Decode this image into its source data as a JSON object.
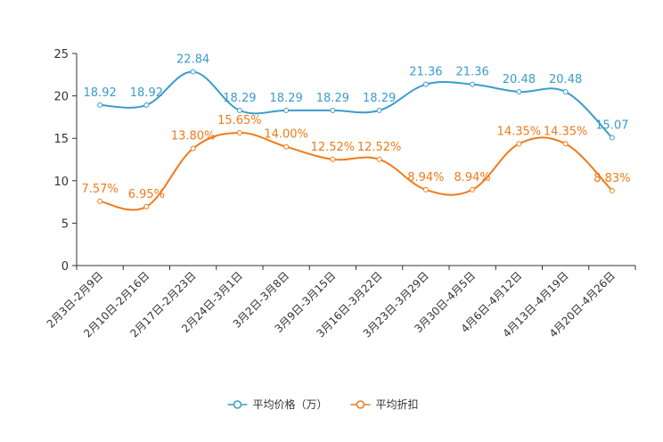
{
  "chart_data": {
    "type": "line",
    "categories": [
      "2月3日-2月9日",
      "2月10日-2月16日",
      "2月17日-2月23日",
      "2月24日-3月1日",
      "3月2日-3月8日",
      "3月9日-3月15日",
      "3月16日-3月22日",
      "3月23日-3月29日",
      "3月30日-4月5日",
      "4月6日-4月12日",
      "4月13日-4月19日",
      "4月20日-4月26日"
    ],
    "series": [
      {
        "name": "平均价格（万）",
        "color": "#3a9ccd",
        "values": [
          18.92,
          18.92,
          22.84,
          18.29,
          18.29,
          18.29,
          18.29,
          21.36,
          21.36,
          20.48,
          20.48,
          15.07
        ],
        "labels": [
          "18.92",
          "18.92",
          "22.84",
          "18.29",
          "18.29",
          "18.29",
          "18.29",
          "21.36",
          "21.36",
          "20.48",
          "20.48",
          "15.07"
        ]
      },
      {
        "name": "平均折扣",
        "color": "#f07a18",
        "values": [
          7.57,
          6.95,
          13.8,
          15.65,
          14.0,
          12.52,
          12.52,
          8.94,
          8.94,
          14.35,
          14.35,
          8.83
        ],
        "labels": [
          "7.57%",
          "6.95%",
          "13.80%",
          "15.65%",
          "14.00%",
          "12.52%",
          "12.52%",
          "8.94%",
          "8.94%",
          "14.35%",
          "14.35%",
          "8.83%"
        ]
      }
    ],
    "ylim": [
      0,
      25
    ],
    "yticks": [
      0,
      5,
      10,
      15,
      20,
      25
    ],
    "title": "",
    "xlabel": "",
    "ylabel": "",
    "legend_position": "bottom-center"
  }
}
